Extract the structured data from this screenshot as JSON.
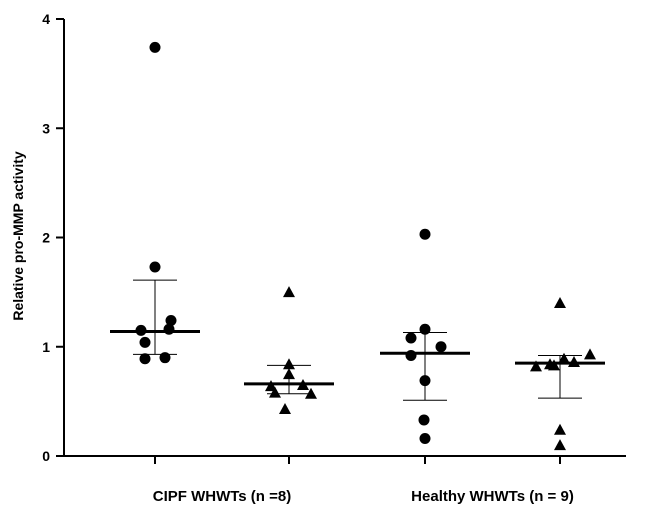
{
  "chart_data": {
    "type": "scatter",
    "ylabel": "Relative pro-MMP activity",
    "ylim": [
      0,
      4
    ],
    "yticks": [
      "0",
      "1",
      "2",
      "3",
      "4"
    ],
    "group_labels": [
      {
        "label": "CIPF WHWTs (n =8)",
        "spans": [
          0,
          1
        ]
      },
      {
        "label": "Healthy WHWTs (n = 9)",
        "spans": [
          2,
          3
        ]
      }
    ],
    "color": "#000000",
    "series": [
      {
        "marker": "circle",
        "values": [
          3.74,
          1.73,
          1.24,
          1.16,
          1.15,
          1.04,
          0.9,
          0.89
        ],
        "mean": 1.14,
        "sd_upper": 1.61,
        "sd_lower": 0.93
      },
      {
        "marker": "triangle",
        "values": [
          1.5,
          0.84,
          0.75,
          0.65,
          0.64,
          0.58,
          0.57,
          0.43
        ],
        "mean": 0.66,
        "sd_upper": 0.83,
        "sd_lower": 0.57
      },
      {
        "marker": "circle",
        "values": [
          2.03,
          1.16,
          1.08,
          1.0,
          0.92,
          0.69,
          0.33,
          0.16
        ],
        "mean": 0.94,
        "sd_upper": 1.13,
        "sd_lower": 0.51
      },
      {
        "marker": "triangle",
        "values": [
          1.4,
          0.93,
          0.89,
          0.86,
          0.84,
          0.83,
          0.82,
          0.24,
          0.1
        ],
        "mean": 0.85,
        "sd_upper": 0.92,
        "sd_lower": 0.53
      }
    ]
  }
}
